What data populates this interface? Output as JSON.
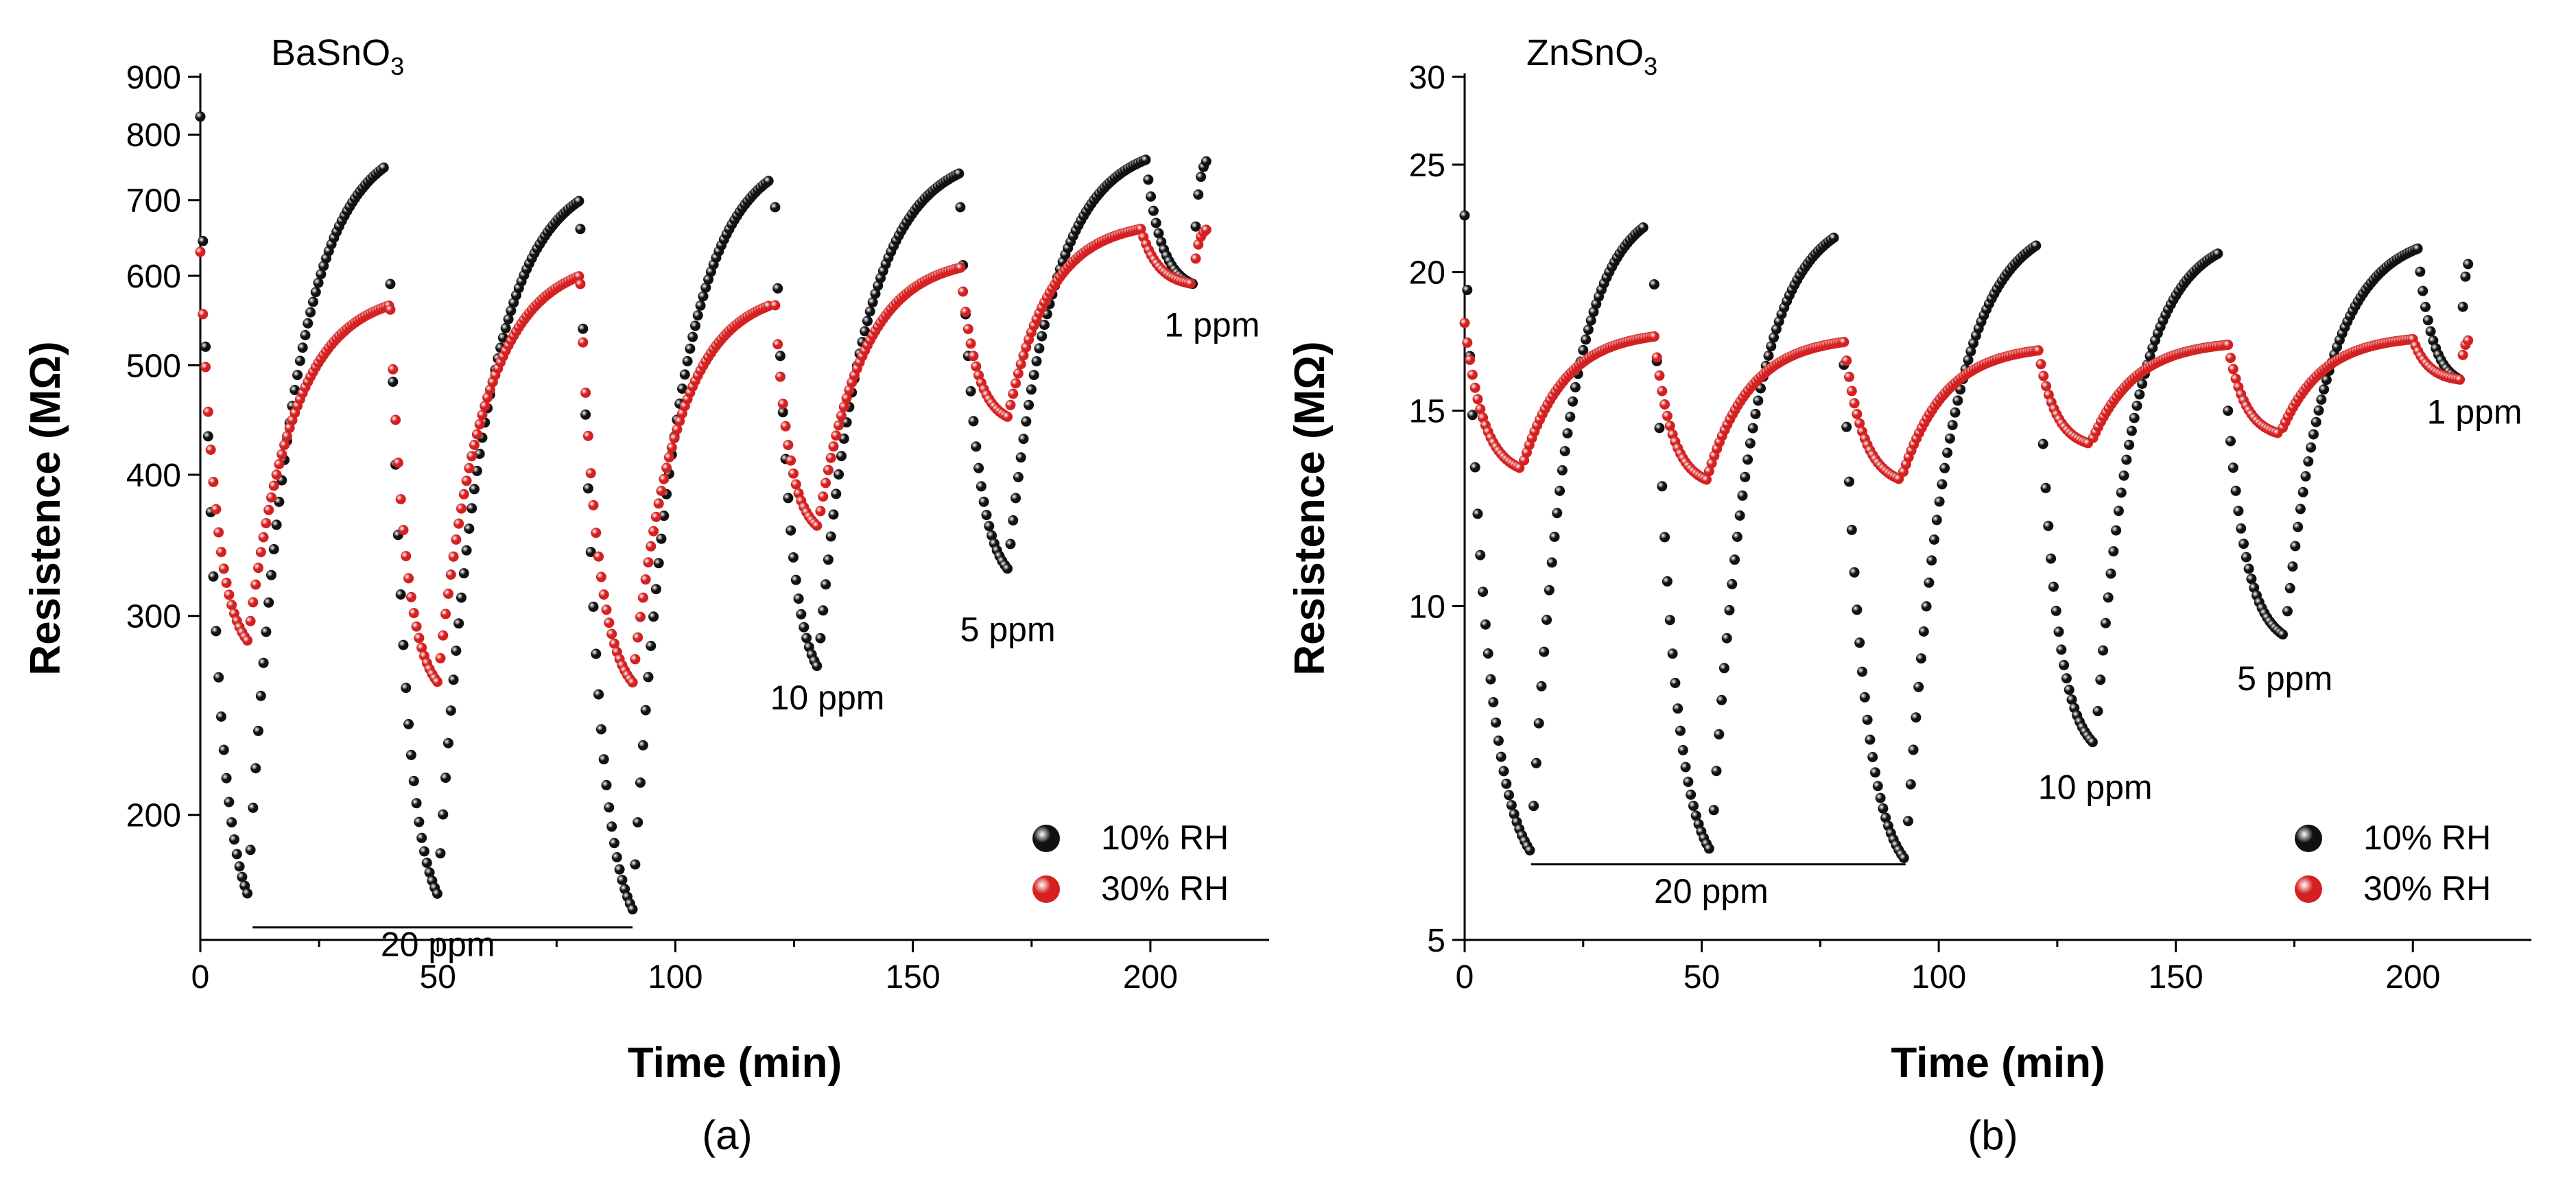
{
  "chart_data": [
    {
      "type": "scatter",
      "panel": "(a)",
      "title": "BaSnO",
      "title_subscript": "3",
      "xlabel": "Time (min)",
      "ylabel": "Resistence (MΩ)",
      "xlim": [
        0,
        225
      ],
      "ylim": [
        155,
        900
      ],
      "y_scale": "log",
      "x_ticks": [
        0,
        50,
        100,
        150,
        200
      ],
      "y_ticks": [
        200,
        300,
        400,
        500,
        600,
        700,
        800,
        900
      ],
      "grid": false,
      "legend_position": "bottom-right",
      "series": [
        {
          "name": "10% RH",
          "color": "#111111",
          "cycles": [
            {
              "t_on": 0,
              "t_min": 10,
              "t_max": 39,
              "r_start": 830,
              "r_min": 170,
              "r_max": 750
            },
            {
              "t_on": 40,
              "t_min": 50,
              "t_max": 80,
              "r_start": 590,
              "r_min": 170,
              "r_max": 700
            },
            {
              "t_on": 80,
              "t_min": 91,
              "t_max": 120,
              "r_start": 660,
              "r_min": 165,
              "r_max": 730
            },
            {
              "t_on": 121,
              "t_min": 130,
              "t_max": 160,
              "r_start": 690,
              "r_min": 270,
              "r_max": 740
            },
            {
              "t_on": 160,
              "t_min": 170,
              "t_max": 199,
              "r_start": 690,
              "r_min": 330,
              "r_max": 760
            },
            {
              "t_on": 199,
              "t_min": 209,
              "t_max": 212,
              "r_start": 760,
              "r_min": 590,
              "r_max": 760
            }
          ]
        },
        {
          "name": "30% RH",
          "color": "#d42020",
          "cycles": [
            {
              "t_on": 0,
              "t_min": 10,
              "t_max": 40,
              "r_start": 630,
              "r_min": 285,
              "r_max": 565
            },
            {
              "t_on": 40,
              "t_min": 50,
              "t_max": 80,
              "r_start": 560,
              "r_min": 262,
              "r_max": 600
            },
            {
              "t_on": 80,
              "t_min": 91,
              "t_max": 120,
              "r_start": 590,
              "r_min": 262,
              "r_max": 565
            },
            {
              "t_on": 121,
              "t_min": 130,
              "t_max": 160,
              "r_start": 565,
              "r_min": 360,
              "r_max": 610
            },
            {
              "t_on": 160,
              "t_min": 170,
              "t_max": 198,
              "r_start": 610,
              "r_min": 450,
              "r_max": 660
            },
            {
              "t_on": 198,
              "t_min": 209,
              "t_max": 212,
              "r_start": 660,
              "r_min": 590,
              "r_max": 660
            }
          ]
        }
      ],
      "annotations": [
        {
          "text": "20 ppm",
          "x": 50,
          "y": 150
        },
        {
          "text": "10 ppm",
          "x": 132,
          "y": 248
        },
        {
          "text": "5 ppm",
          "x": 170,
          "y": 285
        },
        {
          "text": "1 ppm",
          "x": 213,
          "y": 530
        }
      ],
      "bracket": {
        "x_start": 11,
        "x_end": 91,
        "y": 159
      }
    },
    {
      "type": "scatter",
      "panel": "(b)",
      "title": "ZnSnO",
      "title_subscript": "3",
      "xlabel": "Time (min)",
      "ylabel": "Resistence (MΩ)",
      "xlim": [
        0,
        225
      ],
      "ylim": [
        5,
        30
      ],
      "y_scale": "log",
      "x_ticks": [
        0,
        50,
        100,
        150,
        200
      ],
      "y_ticks": [
        5,
        10,
        15,
        20,
        25,
        30
      ],
      "grid": false,
      "legend_position": "bottom-right",
      "series": [
        {
          "name": "10% RH",
          "color": "#111111",
          "cycles": [
            {
              "t_on": 0,
              "t_min": 14,
              "t_max": 38,
              "r_start": 22.5,
              "r_min": 6.0,
              "r_max": 22.0
            },
            {
              "t_on": 40,
              "t_min": 52,
              "t_max": 78,
              "r_start": 19.5,
              "r_min": 6.0,
              "r_max": 21.5
            },
            {
              "t_on": 80,
              "t_min": 93,
              "t_max": 121,
              "r_start": 16.5,
              "r_min": 5.9,
              "r_max": 21.2
            },
            {
              "t_on": 122,
              "t_min": 133,
              "t_max": 159,
              "r_start": 14.0,
              "r_min": 7.5,
              "r_max": 20.8
            },
            {
              "t_on": 161,
              "t_min": 173,
              "t_max": 201,
              "r_start": 15.0,
              "r_min": 9.4,
              "r_max": 21.0
            },
            {
              "t_on": 201,
              "t_min": 210,
              "t_max": 212,
              "r_start": 21.0,
              "r_min": 16.0,
              "r_max": 20.5
            }
          ]
        },
        {
          "name": "30% RH",
          "color": "#d42020",
          "cycles": [
            {
              "t_on": 0,
              "t_min": 12,
              "t_max": 40,
              "r_start": 18.0,
              "r_min": 13.3,
              "r_max": 17.5
            },
            {
              "t_on": 40,
              "t_min": 51,
              "t_max": 80,
              "r_start": 17.5,
              "r_min": 13.0,
              "r_max": 17.3
            },
            {
              "t_on": 80,
              "t_min": 92,
              "t_max": 121,
              "r_start": 17.3,
              "r_min": 13.0,
              "r_max": 17.0
            },
            {
              "t_on": 121,
              "t_min": 132,
              "t_max": 161,
              "r_start": 17.0,
              "r_min": 14.0,
              "r_max": 17.2
            },
            {
              "t_on": 161,
              "t_min": 172,
              "t_max": 200,
              "r_start": 17.2,
              "r_min": 14.3,
              "r_max": 17.4
            },
            {
              "t_on": 200,
              "t_min": 210,
              "t_max": 212,
              "r_start": 17.4,
              "r_min": 16.0,
              "r_max": 17.4
            }
          ]
        }
      ],
      "annotations": [
        {
          "text": "20 ppm",
          "x": 52,
          "y": 5.4
        },
        {
          "text": "10 ppm",
          "x": 133,
          "y": 6.7
        },
        {
          "text": "5 ppm",
          "x": 173,
          "y": 8.4
        },
        {
          "text": "1 ppm",
          "x": 213,
          "y": 14.6
        }
      ],
      "bracket": {
        "x_start": 14,
        "x_end": 93,
        "y": 5.85
      }
    }
  ]
}
